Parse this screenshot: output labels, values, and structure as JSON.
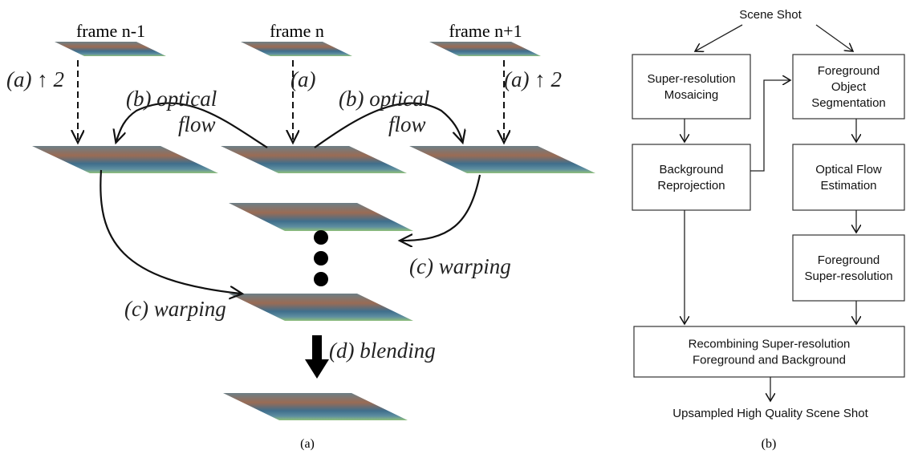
{
  "left": {
    "frames": [
      "frame n-1",
      "frame n",
      "frame n+1"
    ],
    "upsample": [
      "(a) ↑ 2",
      "(a)",
      "(a) ↑ 2"
    ],
    "flow_left": [
      "(b) optical",
      "flow"
    ],
    "flow_right": [
      "(b) optical",
      "flow"
    ],
    "warp_left": "(c) warping",
    "warp_right": "(c) warping",
    "blend": "(d) blending",
    "caption": "(a)"
  },
  "right": {
    "start": "Scene Shot",
    "nodes": [
      {
        "lines": [
          "Super-resolution",
          "Mosaicing"
        ]
      },
      {
        "lines": [
          "Foreground",
          "Object",
          "Segmentation"
        ]
      },
      {
        "lines": [
          "Background",
          "Reprojection"
        ]
      },
      {
        "lines": [
          "Optical Flow",
          "Estimation"
        ]
      },
      {
        "lines": [
          "Foreground",
          "Super-resolution"
        ]
      },
      {
        "lines": [
          "Recombining Super-resolution",
          "Foreground and Background"
        ]
      }
    ],
    "end": "Upsampled High Quality Scene Shot",
    "caption": "(b)"
  }
}
